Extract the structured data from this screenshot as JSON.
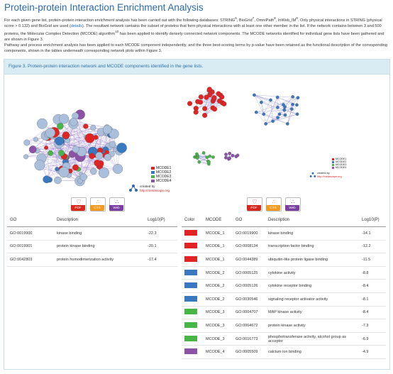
{
  "header": {
    "title": "Protein-protein Interaction Enrichment Analysis",
    "p1a": "For each given gene list, protein-protein interaction enrichment analysis has been carried out with the following databases: STRING",
    "sup1": "6",
    "p1b": ", BioGrid",
    "sup2": "7",
    "p1c": ", OmniPath",
    "sup3": "8",
    "p1d": ", InWeb_IM",
    "sup4": "9",
    "p1e": ". Only physical interactions in STRING (physical score > 0.132) and BioGrid are used (",
    "details_link": "details",
    "p1f": "). The resultant network contains the subset of proteins that form physical interactions with at least one other member in the list. If the network contains between 3 and 500 proteins, the Molecular Complex Detection (MCODE) algorithm",
    "sup5": "10",
    "p1g": " has been applied to identify densely connected network components. The MCODE networks identified for individual gene lists have been gathered and are shown in Figure 3.",
    "p2": "Pathway and process enrichment analysis has been applied to each MCODE component independently, and the three best-scoring terms by p-value have been retained as the functional description of the corresponding components, shown in the tables underneath corresponding network plots within Figure 3."
  },
  "figure": {
    "caption": "Figure 3. Protein-protein interaction network and MCODE components identified in the gene lists.",
    "legend": [
      "MCODE1",
      "MCODE2",
      "MCODE3",
      "MCODE4"
    ],
    "credit_line": "created by",
    "credit_url": "http://metascape.org",
    "colors": {
      "mcode1": "#e02424",
      "mcode2": "#3a78c0",
      "mcode3": "#47b548",
      "mcode4": "#8c52a6",
      "node_gray": "#a9bfdc",
      "pdf": "#d9261c",
      "cys": "#f39a1e",
      "web": "#7a3fa0"
    },
    "buttons": [
      {
        "icon": "pdf-icon",
        "label": "PDF"
      },
      {
        "icon": "cytoscape-icon",
        "label": "CYS"
      },
      {
        "icon": "web-icon",
        "label": "Web"
      }
    ]
  },
  "left_table": {
    "headers": [
      "GO",
      "Description",
      "Log10(P)"
    ],
    "rows": [
      {
        "go": "GO:0019900",
        "desc": "kinase binding",
        "logp": "-22.3"
      },
      {
        "go": "GO:0019901",
        "desc": "protein kinase binding",
        "logp": "-20.1"
      },
      {
        "go": "GO:0042803",
        "desc": "protein homodimerization activity",
        "logp": "-17.4"
      }
    ]
  },
  "right_table": {
    "headers": [
      "Color",
      "MCODE",
      "GO",
      "Description",
      "Log10(P)"
    ],
    "rows": [
      {
        "color": "#e02424",
        "mcode": "MCODE_1",
        "go": "GO:0019900",
        "desc": "kinase binding",
        "logp": "-14.1"
      },
      {
        "color": "#e02424",
        "mcode": "MCODE_1",
        "go": "GO:0008134",
        "desc": "transcription factor binding",
        "logp": "-12.2"
      },
      {
        "color": "#e02424",
        "mcode": "MCODE_1",
        "go": "GO:0044389",
        "desc": "ubiquitin-like protein ligase binding",
        "logp": "-11.5"
      },
      {
        "color": "#3a78c0",
        "mcode": "MCODE_2",
        "go": "GO:0005125",
        "desc": "cytokine activity",
        "logp": "-8.8"
      },
      {
        "color": "#3a78c0",
        "mcode": "MCODE_2",
        "go": "GO:0005126",
        "desc": "cytokine receptor binding",
        "logp": "-8.4"
      },
      {
        "color": "#3a78c0",
        "mcode": "MCODE_2",
        "go": "GO:0030546",
        "desc": "signaling receptor activator activity",
        "logp": "-8.1"
      },
      {
        "color": "#47b548",
        "mcode": "MCODE_3",
        "go": "GO:0004707",
        "desc": "MAP kinase activity",
        "logp": "-8.4"
      },
      {
        "color": "#47b548",
        "mcode": "MCODE_3",
        "go": "GO:0004672",
        "desc": "protein kinase activity",
        "logp": "-7.3"
      },
      {
        "color": "#47b548",
        "mcode": "MCODE_3",
        "go": "GO:0016773",
        "desc": "phosphotransferase activity, alcohol group as acceptor",
        "logp": "-6.9"
      },
      {
        "color": "#8c52a6",
        "mcode": "MCODE_4",
        "go": "GO:0005509",
        "desc": "calcium ion binding",
        "logp": "-4.9"
      }
    ]
  }
}
